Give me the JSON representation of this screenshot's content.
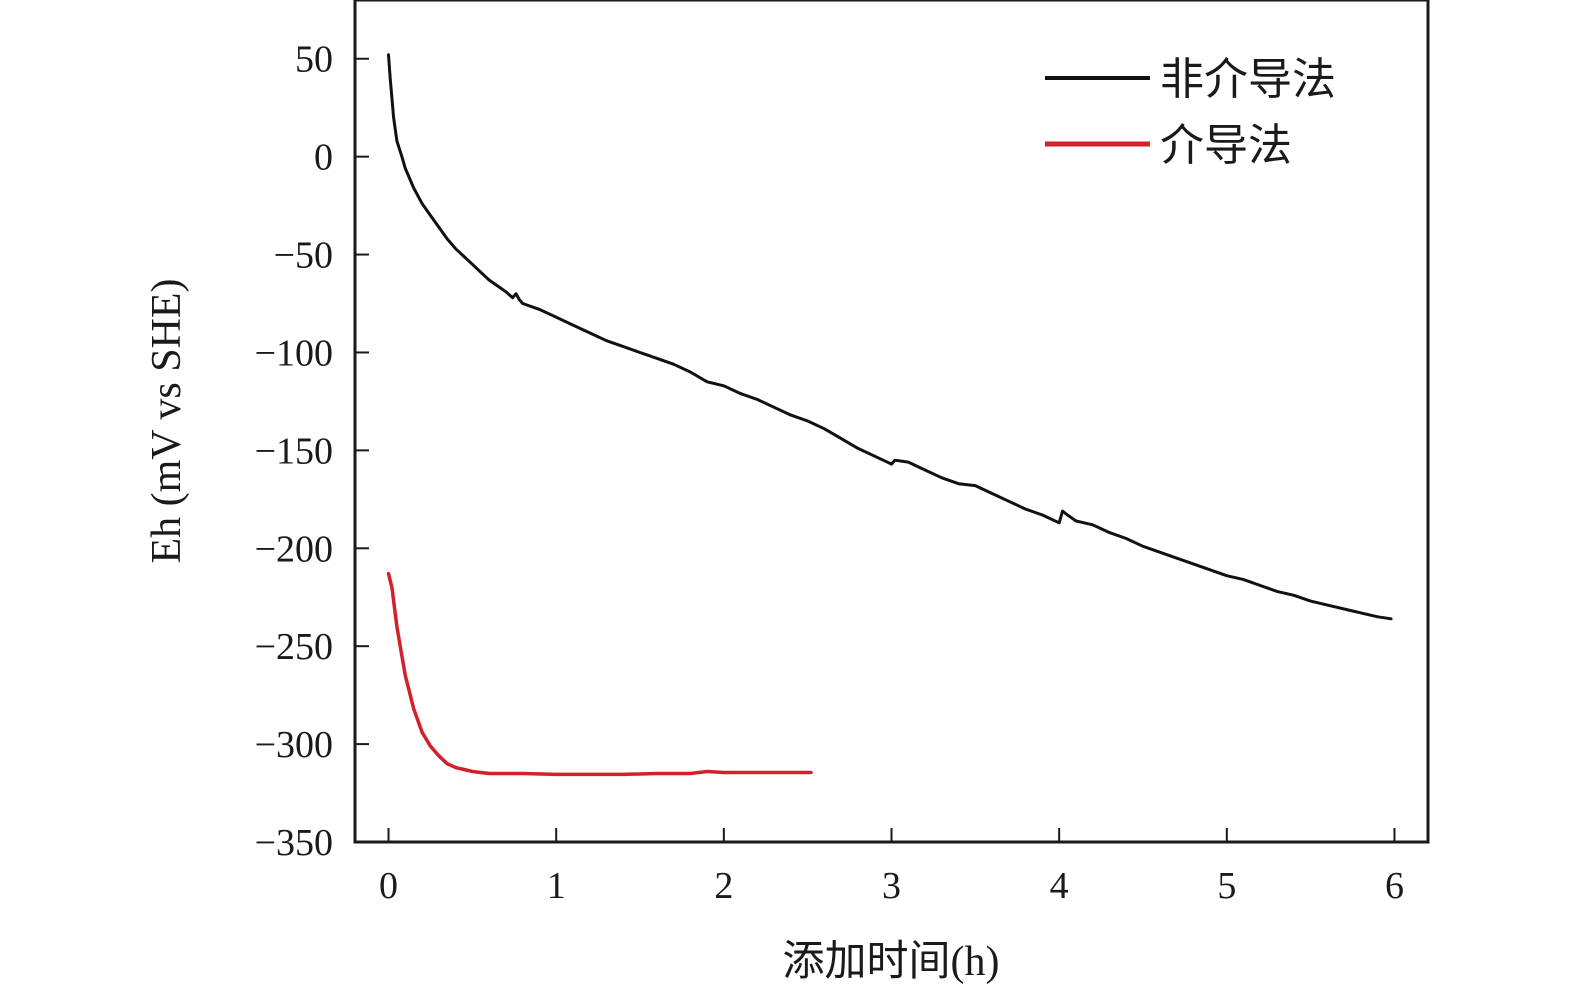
{
  "chart_data": {
    "type": "line",
    "title": "",
    "xlabel": "添加时间(h)",
    "ylabel": "Eh (mV vs SHE)",
    "xlim": [
      -0.2,
      6.2
    ],
    "ylim": [
      -350,
      80
    ],
    "x_ticks": [
      0,
      1,
      2,
      3,
      4,
      5,
      6
    ],
    "x_tick_labels": [
      "0",
      "1",
      "2",
      "3",
      "4",
      "5",
      "6"
    ],
    "y_ticks": [
      50,
      0,
      -50,
      -100,
      -150,
      -200,
      -250,
      -300,
      -350
    ],
    "y_tick_labels": [
      "50",
      "0",
      "−50",
      "−100",
      "−150",
      "−200",
      "−250",
      "−300",
      "−350"
    ],
    "grid": false,
    "legend_position": "top-right",
    "series": [
      {
        "name": "非介导法",
        "color": "#111111",
        "points": [
          [
            0.0,
            52
          ],
          [
            0.01,
            40
          ],
          [
            0.03,
            20
          ],
          [
            0.05,
            8
          ],
          [
            0.08,
            0
          ],
          [
            0.1,
            -6
          ],
          [
            0.15,
            -16
          ],
          [
            0.2,
            -24
          ],
          [
            0.25,
            -30
          ],
          [
            0.3,
            -36
          ],
          [
            0.35,
            -42
          ],
          [
            0.4,
            -47
          ],
          [
            0.45,
            -51
          ],
          [
            0.5,
            -55
          ],
          [
            0.55,
            -59
          ],
          [
            0.6,
            -63
          ],
          [
            0.65,
            -66
          ],
          [
            0.7,
            -69
          ],
          [
            0.74,
            -72
          ],
          [
            0.76,
            -70
          ],
          [
            0.78,
            -73
          ],
          [
            0.8,
            -75
          ],
          [
            0.9,
            -78
          ],
          [
            1.0,
            -82
          ],
          [
            1.1,
            -86
          ],
          [
            1.2,
            -90
          ],
          [
            1.3,
            -94
          ],
          [
            1.4,
            -97
          ],
          [
            1.5,
            -100
          ],
          [
            1.6,
            -103
          ],
          [
            1.7,
            -106
          ],
          [
            1.8,
            -110
          ],
          [
            1.9,
            -115
          ],
          [
            2.0,
            -117
          ],
          [
            2.1,
            -121
          ],
          [
            2.2,
            -124
          ],
          [
            2.3,
            -128
          ],
          [
            2.4,
            -132
          ],
          [
            2.5,
            -135
          ],
          [
            2.6,
            -139
          ],
          [
            2.7,
            -144
          ],
          [
            2.8,
            -149
          ],
          [
            2.9,
            -153
          ],
          [
            3.0,
            -157
          ],
          [
            3.02,
            -155
          ],
          [
            3.1,
            -156
          ],
          [
            3.2,
            -160
          ],
          [
            3.3,
            -164
          ],
          [
            3.4,
            -167
          ],
          [
            3.5,
            -168
          ],
          [
            3.6,
            -172
          ],
          [
            3.7,
            -176
          ],
          [
            3.8,
            -180
          ],
          [
            3.9,
            -183
          ],
          [
            4.0,
            -187
          ],
          [
            4.02,
            -181
          ],
          [
            4.05,
            -183
          ],
          [
            4.1,
            -186
          ],
          [
            4.2,
            -188
          ],
          [
            4.3,
            -192
          ],
          [
            4.4,
            -195
          ],
          [
            4.5,
            -199
          ],
          [
            4.6,
            -202
          ],
          [
            4.7,
            -205
          ],
          [
            4.8,
            -208
          ],
          [
            4.9,
            -211
          ],
          [
            5.0,
            -214
          ],
          [
            5.1,
            -216
          ],
          [
            5.2,
            -219
          ],
          [
            5.3,
            -222
          ],
          [
            5.4,
            -224
          ],
          [
            5.5,
            -227
          ],
          [
            5.6,
            -229
          ],
          [
            5.7,
            -231
          ],
          [
            5.8,
            -233
          ],
          [
            5.9,
            -235
          ],
          [
            5.98,
            -236
          ]
        ]
      },
      {
        "name": "介导法",
        "color": "#d4202a",
        "points": [
          [
            0.0,
            -213
          ],
          [
            0.02,
            -220
          ],
          [
            0.05,
            -240
          ],
          [
            0.08,
            -255
          ],
          [
            0.1,
            -265
          ],
          [
            0.15,
            -282
          ],
          [
            0.2,
            -294
          ],
          [
            0.25,
            -301
          ],
          [
            0.3,
            -306
          ],
          [
            0.35,
            -310
          ],
          [
            0.4,
            -312
          ],
          [
            0.45,
            -313
          ],
          [
            0.5,
            -314
          ],
          [
            0.6,
            -315
          ],
          [
            0.8,
            -315
          ],
          [
            1.0,
            -315.5
          ],
          [
            1.2,
            -315.5
          ],
          [
            1.4,
            -315.5
          ],
          [
            1.6,
            -315
          ],
          [
            1.8,
            -315
          ],
          [
            1.9,
            -314
          ],
          [
            2.0,
            -314.5
          ],
          [
            2.2,
            -314.5
          ],
          [
            2.4,
            -314.5
          ],
          [
            2.52,
            -314.5
          ]
        ]
      }
    ]
  }
}
